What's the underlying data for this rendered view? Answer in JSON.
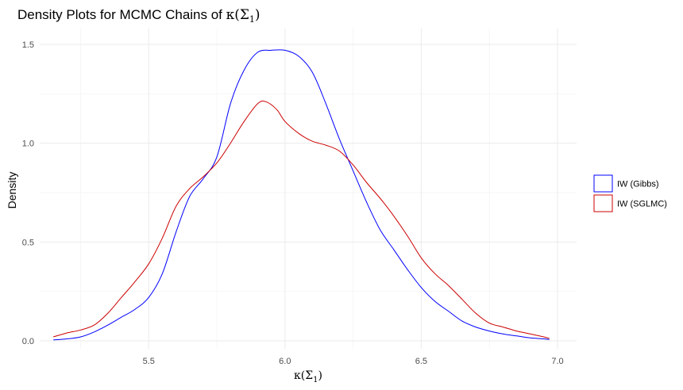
{
  "chart_data": {
    "type": "line",
    "title_prefix": "Density Plots for MCMC Chains of ",
    "title_math": "κ(Σ",
    "title_math_sub": "1",
    "title_math_close": ")",
    "xlabel_math": "κ(Σ",
    "xlabel_math_sub": "1",
    "xlabel_math_close": ")",
    "ylabel": "Density",
    "xlim": [
      5.1,
      7.07
    ],
    "ylim": [
      -0.04,
      1.58
    ],
    "x_ticks": [
      5.5,
      6.0,
      6.5,
      7.0
    ],
    "x_tick_labels": [
      "5.5",
      "6.0",
      "6.5",
      "7.0"
    ],
    "y_ticks": [
      0.0,
      0.5,
      1.0,
      1.5
    ],
    "y_tick_labels": [
      "0.0",
      "0.5",
      "1.0",
      "1.5"
    ],
    "grid": true,
    "legend_position": "right",
    "series": [
      {
        "name": "IW (Gibbs)",
        "color": "#0000ff",
        "points": [
          [
            5.15,
            0.005
          ],
          [
            5.2,
            0.01
          ],
          [
            5.25,
            0.02
          ],
          [
            5.3,
            0.045
          ],
          [
            5.35,
            0.08
          ],
          [
            5.4,
            0.12
          ],
          [
            5.45,
            0.16
          ],
          [
            5.5,
            0.22
          ],
          [
            5.55,
            0.34
          ],
          [
            5.6,
            0.55
          ],
          [
            5.65,
            0.73
          ],
          [
            5.7,
            0.82
          ],
          [
            5.75,
            0.93
          ],
          [
            5.8,
            1.2
          ],
          [
            5.85,
            1.37
          ],
          [
            5.9,
            1.46
          ],
          [
            5.95,
            1.47
          ],
          [
            6.0,
            1.47
          ],
          [
            6.05,
            1.44
          ],
          [
            6.1,
            1.36
          ],
          [
            6.15,
            1.2
          ],
          [
            6.2,
            1.02
          ],
          [
            6.25,
            0.86
          ],
          [
            6.3,
            0.7
          ],
          [
            6.35,
            0.56
          ],
          [
            6.4,
            0.46
          ],
          [
            6.45,
            0.36
          ],
          [
            6.5,
            0.27
          ],
          [
            6.55,
            0.2
          ],
          [
            6.6,
            0.15
          ],
          [
            6.65,
            0.1
          ],
          [
            6.7,
            0.07
          ],
          [
            6.75,
            0.05
          ],
          [
            6.8,
            0.035
          ],
          [
            6.85,
            0.025
          ],
          [
            6.9,
            0.015
          ],
          [
            6.95,
            0.01
          ],
          [
            6.97,
            0.007
          ]
        ]
      },
      {
        "name": "IW (SGLMC)",
        "color": "#cc0000",
        "points": [
          [
            5.15,
            0.02
          ],
          [
            5.2,
            0.04
          ],
          [
            5.25,
            0.055
          ],
          [
            5.3,
            0.08
          ],
          [
            5.35,
            0.14
          ],
          [
            5.4,
            0.22
          ],
          [
            5.45,
            0.3
          ],
          [
            5.5,
            0.39
          ],
          [
            5.55,
            0.52
          ],
          [
            5.6,
            0.68
          ],
          [
            5.65,
            0.77
          ],
          [
            5.7,
            0.83
          ],
          [
            5.75,
            0.9
          ],
          [
            5.8,
            1.0
          ],
          [
            5.85,
            1.11
          ],
          [
            5.9,
            1.2
          ],
          [
            5.93,
            1.21
          ],
          [
            5.97,
            1.17
          ],
          [
            6.0,
            1.11
          ],
          [
            6.05,
            1.05
          ],
          [
            6.1,
            1.01
          ],
          [
            6.15,
            0.99
          ],
          [
            6.2,
            0.96
          ],
          [
            6.25,
            0.89
          ],
          [
            6.3,
            0.8
          ],
          [
            6.35,
            0.72
          ],
          [
            6.4,
            0.63
          ],
          [
            6.45,
            0.53
          ],
          [
            6.5,
            0.42
          ],
          [
            6.55,
            0.34
          ],
          [
            6.6,
            0.28
          ],
          [
            6.65,
            0.21
          ],
          [
            6.7,
            0.14
          ],
          [
            6.75,
            0.09
          ],
          [
            6.8,
            0.07
          ],
          [
            6.85,
            0.05
          ],
          [
            6.9,
            0.035
          ],
          [
            6.95,
            0.02
          ],
          [
            6.97,
            0.012
          ]
        ]
      }
    ]
  }
}
